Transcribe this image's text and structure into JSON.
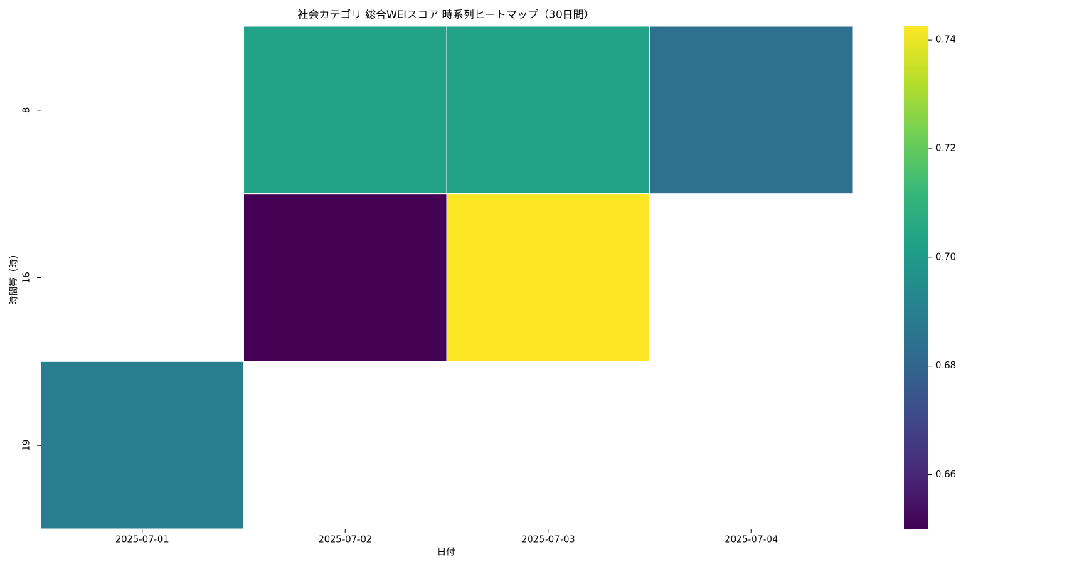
{
  "chart_data": {
    "type": "heatmap",
    "title": "社会カテゴリ 総合WEIスコア 時系列ヒートマップ（30日間）",
    "x_label": "日付",
    "y_label": "時間帯（時）",
    "categories": [
      "2025-07-01",
      "2025-07-02",
      "2025-07-03",
      "2025-07-04"
    ],
    "rows": [
      "8",
      "16",
      "19"
    ],
    "values": [
      [
        null,
        0.703,
        0.703,
        0.684
      ],
      [
        null,
        0.65,
        0.7425,
        null
      ],
      [
        0.689,
        null,
        null,
        null
      ]
    ],
    "zlim": [
      0.65,
      0.7425
    ],
    "zticks": [
      0.66,
      0.68,
      {
        "value": 0.7,
        "label": "0.70"
      },
      0.72,
      0.74
    ],
    "colorscale": [
      "#440154",
      "#482878",
      "#3e4989",
      "#31688e",
      "#26828e",
      "#1f9e89",
      "#35b779",
      "#6ece58",
      "#b5de2b",
      "#fde725"
    ],
    "edge_color": "#ffffff"
  }
}
